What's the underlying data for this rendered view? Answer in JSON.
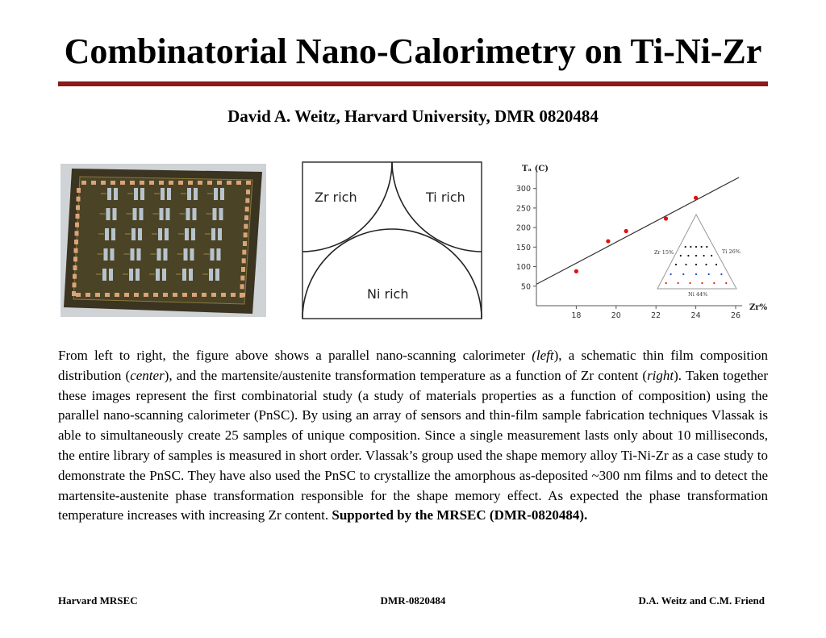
{
  "title": "Combinatorial Nano-Calorimetry on Ti-Ni-Zr",
  "author": "David A. Weitz, Harvard University, DMR 0820484",
  "schematic": {
    "labels": [
      "Zr rich",
      "Ti rich",
      "Ni rich"
    ]
  },
  "chart_data": {
    "type": "scatter",
    "ylabel": "Tₐ (C)",
    "xlabel": "Zr%",
    "xlim": [
      16,
      26
    ],
    "ylim": [
      0,
      320
    ],
    "xticks": [
      18,
      20,
      22,
      24,
      26
    ],
    "yticks": [
      50,
      100,
      150,
      200,
      250,
      300
    ],
    "points": [
      [
        18,
        88
      ],
      [
        19.6,
        165
      ],
      [
        20.5,
        191
      ],
      [
        22.5,
        223
      ],
      [
        24,
        276
      ]
    ],
    "fit_line": [
      [
        16,
        55
      ],
      [
        26,
        320
      ]
    ],
    "inset": {
      "type": "ternary",
      "labels": [
        "Zr 15%",
        "Ti 26%",
        "Ni 44%"
      ]
    }
  },
  "text": {
    "p1": "From left to right, the figure above shows a parallel nano-scanning calorimeter ",
    "left": "(left",
    "p2": "), a schematic thin film composition distribution (",
    "center": "center",
    "p3": "), and the martensite/austenite transformation temperature as a function of Zr content (",
    "right": "right",
    "p4": ").  Taken together these images represent the first combinatorial study (a study of materials properties as a function of composition) using the parallel nano-scanning calorimeter (PnSC).  By using an array of sensors and thin-film sample fabrication techniques Vlassak is  able to simultaneously create 25 samples of unique composition.  Since a single measurement lasts only about 10 milliseconds, the entire library of samples is measured in short order.  Vlassak’s group used the shape memory alloy Ti-Ni-Zr as a case study to demonstrate the PnSC. They have also used the PnSC to crystallize the amorphous as-deposited ~300 nm films and to detect the martensite-austenite phase transformation responsible for the shape memory effect. As expected the phase transformation temperature increases with increasing Zr content.  ",
    "support": "Supported by the MRSEC (DMR-0820484)."
  },
  "footer": {
    "left": "Harvard MRSEC",
    "center": "DMR-0820484",
    "right": "D.A. Weitz and C.M. Friend"
  }
}
